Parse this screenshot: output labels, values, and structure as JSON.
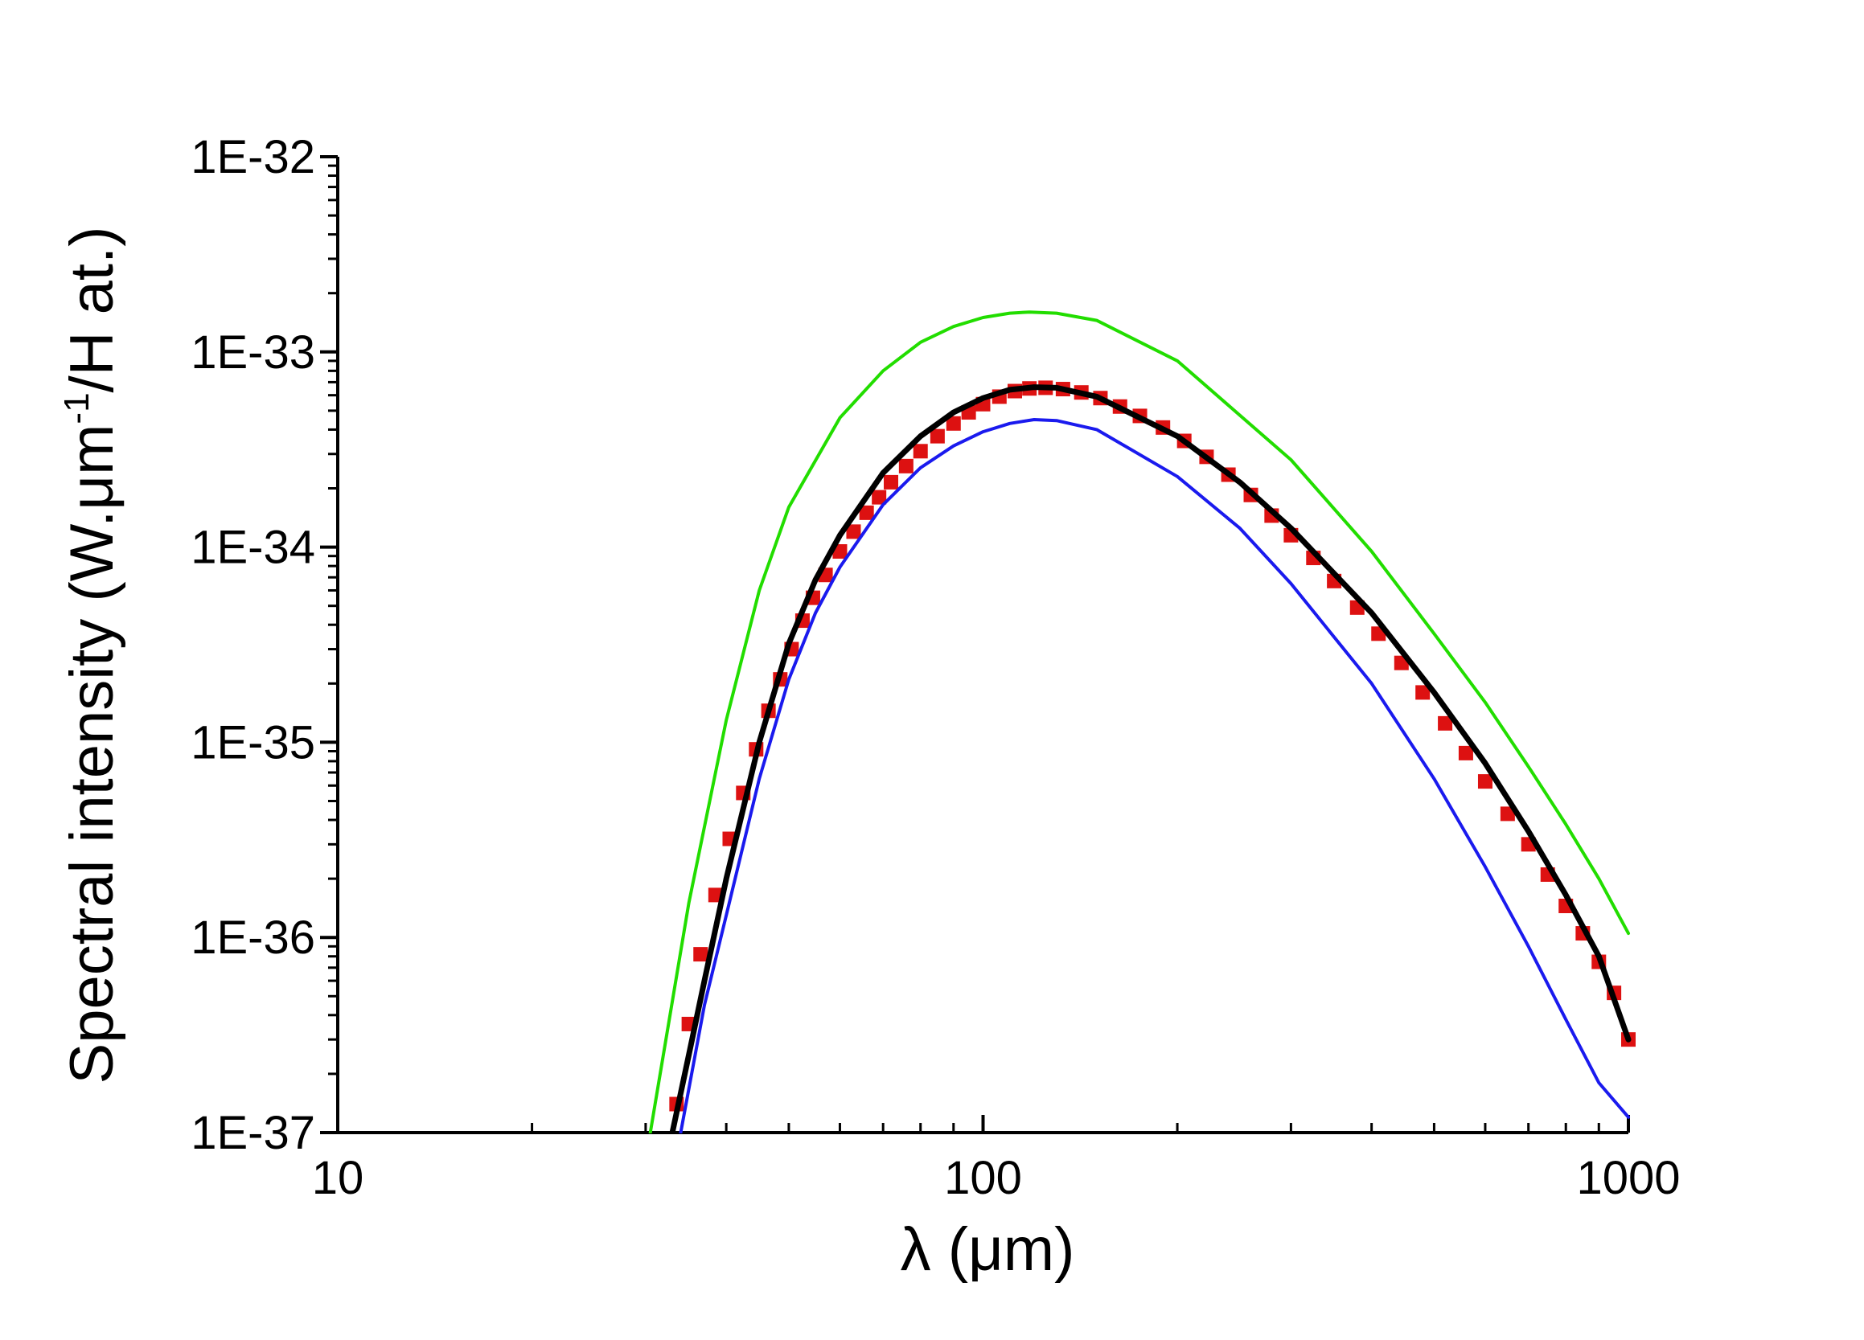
{
  "chart_data": {
    "type": "line",
    "title": "",
    "xlabel": "λ (μm)",
    "ylabel": {
      "prefix": "Spectral intensity (W.μm",
      "superscript": "-1",
      "suffix": "/H at.)"
    },
    "xscale": "log",
    "yscale": "log",
    "xlim": [
      10,
      1000
    ],
    "ylim": [
      1e-37,
      1e-32
    ],
    "x_ticks": [
      {
        "value": 10,
        "label": "10"
      },
      {
        "value": 100,
        "label": "100"
      },
      {
        "value": 1000,
        "label": "1000"
      }
    ],
    "y_ticks": [
      {
        "value": 1e-37,
        "label": "1E-37"
      },
      {
        "value": 1e-36,
        "label": "1E-36"
      },
      {
        "value": 1e-35,
        "label": "1E-35"
      },
      {
        "value": 1e-34,
        "label": "1E-34"
      },
      {
        "value": 1e-33,
        "label": "1E-33"
      },
      {
        "value": 1e-32,
        "label": "1E-32"
      }
    ],
    "grid": false,
    "legend": "none",
    "series": [
      {
        "name": "green-curve",
        "style": "line",
        "color": "#22dd00",
        "points": [
          [
            30.5,
            1e-37
          ],
          [
            35,
            1.5e-36
          ],
          [
            40,
            1.3e-35
          ],
          [
            45,
            6e-35
          ],
          [
            50,
            1.6e-34
          ],
          [
            60,
            4.6e-34
          ],
          [
            70,
            8e-34
          ],
          [
            80,
            1.12e-33
          ],
          [
            90,
            1.35e-33
          ],
          [
            100,
            1.5e-33
          ],
          [
            110,
            1.58e-33
          ],
          [
            118,
            1.6e-33
          ],
          [
            130,
            1.58e-33
          ],
          [
            150,
            1.45e-33
          ],
          [
            200,
            9e-34
          ],
          [
            300,
            2.8e-34
          ],
          [
            400,
            9.5e-35
          ],
          [
            500,
            3.6e-35
          ],
          [
            600,
            1.6e-35
          ],
          [
            700,
            7.5e-36
          ],
          [
            800,
            3.8e-36
          ],
          [
            900,
            2e-36
          ],
          [
            1000,
            1.05e-36
          ]
        ]
      },
      {
        "name": "red-squares",
        "style": "square-markers",
        "color": "#dd1111",
        "points": [
          [
            33.5,
            1.4e-37
          ],
          [
            35,
            3.6e-37
          ],
          [
            36.5,
            8.2e-37
          ],
          [
            38.5,
            1.65e-36
          ],
          [
            40.5,
            3.2e-36
          ],
          [
            42.5,
            5.5e-36
          ],
          [
            44.5,
            9.2e-36
          ],
          [
            46.5,
            1.45e-35
          ],
          [
            48.5,
            2.1e-35
          ],
          [
            50.5,
            3e-35
          ],
          [
            52.5,
            4.2e-35
          ],
          [
            54.5,
            5.5e-35
          ],
          [
            57,
            7.2e-35
          ],
          [
            60,
            9.5e-35
          ],
          [
            63,
            1.2e-34
          ],
          [
            66,
            1.5e-34
          ],
          [
            69,
            1.8e-34
          ],
          [
            72,
            2.15e-34
          ],
          [
            76,
            2.6e-34
          ],
          [
            80,
            3.1e-34
          ],
          [
            85,
            3.7e-34
          ],
          [
            90,
            4.3e-34
          ],
          [
            95,
            4.9e-34
          ],
          [
            100,
            5.4e-34
          ],
          [
            106,
            5.9e-34
          ],
          [
            112,
            6.3e-34
          ],
          [
            118,
            6.5e-34
          ],
          [
            125,
            6.55e-34
          ],
          [
            133,
            6.45e-34
          ],
          [
            142,
            6.2e-34
          ],
          [
            152,
            5.8e-34
          ],
          [
            163,
            5.25e-34
          ],
          [
            175,
            4.7e-34
          ],
          [
            190,
            4.1e-34
          ],
          [
            205,
            3.5e-34
          ],
          [
            222,
            2.9e-34
          ],
          [
            240,
            2.35e-34
          ],
          [
            260,
            1.85e-34
          ],
          [
            280,
            1.45e-34
          ],
          [
            300,
            1.15e-34
          ],
          [
            325,
            8.8e-35
          ],
          [
            350,
            6.7e-35
          ],
          [
            380,
            4.9e-35
          ],
          [
            410,
            3.6e-35
          ],
          [
            445,
            2.55e-35
          ],
          [
            480,
            1.8e-35
          ],
          [
            520,
            1.25e-35
          ],
          [
            560,
            8.8e-36
          ],
          [
            600,
            6.3e-36
          ],
          [
            650,
            4.3e-36
          ],
          [
            700,
            3e-36
          ],
          [
            750,
            2.1e-36
          ],
          [
            800,
            1.45e-36
          ],
          [
            850,
            1.05e-36
          ],
          [
            900,
            7.5e-37
          ],
          [
            950,
            5.2e-37
          ],
          [
            1000,
            3e-37
          ]
        ]
      },
      {
        "name": "black-fit",
        "style": "thick-line",
        "color": "#000000",
        "points": [
          [
            33,
            1e-37
          ],
          [
            35,
            2.5e-37
          ],
          [
            37,
            6e-37
          ],
          [
            40,
            2e-36
          ],
          [
            45,
            1e-35
          ],
          [
            50,
            3.2e-35
          ],
          [
            55,
            6.8e-35
          ],
          [
            60,
            1.15e-34
          ],
          [
            70,
            2.4e-34
          ],
          [
            80,
            3.7e-34
          ],
          [
            90,
            4.9e-34
          ],
          [
            100,
            5.8e-34
          ],
          [
            110,
            6.4e-34
          ],
          [
            120,
            6.6e-34
          ],
          [
            130,
            6.55e-34
          ],
          [
            150,
            5.9e-34
          ],
          [
            200,
            3.7e-34
          ],
          [
            250,
            2.15e-34
          ],
          [
            300,
            1.25e-34
          ],
          [
            400,
            4.6e-35
          ],
          [
            500,
            1.8e-35
          ],
          [
            600,
            7.8e-36
          ],
          [
            700,
            3.5e-36
          ],
          [
            800,
            1.65e-36
          ],
          [
            900,
            8e-37
          ],
          [
            1000,
            3e-37
          ]
        ]
      },
      {
        "name": "blue-curve",
        "style": "line",
        "color": "#1a1aee",
        "points": [
          [
            34,
            1e-37
          ],
          [
            37,
            4.5e-37
          ],
          [
            40,
            1.3e-36
          ],
          [
            45,
            6.5e-36
          ],
          [
            50,
            2.1e-35
          ],
          [
            55,
            4.6e-35
          ],
          [
            60,
            7.9e-35
          ],
          [
            70,
            1.65e-34
          ],
          [
            80,
            2.55e-34
          ],
          [
            90,
            3.3e-34
          ],
          [
            100,
            3.9e-34
          ],
          [
            110,
            4.3e-34
          ],
          [
            120,
            4.5e-34
          ],
          [
            130,
            4.45e-34
          ],
          [
            150,
            4e-34
          ],
          [
            200,
            2.3e-34
          ],
          [
            250,
            1.25e-34
          ],
          [
            300,
            6.5e-35
          ],
          [
            400,
            2e-35
          ],
          [
            500,
            6.5e-36
          ],
          [
            600,
            2.3e-36
          ],
          [
            700,
            9e-37
          ],
          [
            800,
            3.8e-37
          ],
          [
            900,
            1.8e-37
          ],
          [
            1000,
            1.2e-37
          ]
        ]
      }
    ]
  }
}
